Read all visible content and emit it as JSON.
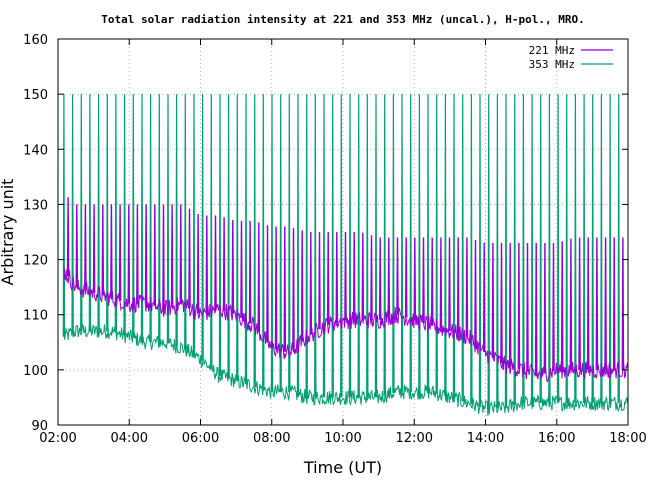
{
  "chart_data": {
    "type": "line",
    "title": "Total solar radiation intensity at 221 and 353 MHz (uncal.), H-pol., MRO.",
    "xlabel": "Time (UT)",
    "ylabel": "Arbitrary unit",
    "xlim": [
      "02:00",
      "18:00"
    ],
    "ylim": [
      90,
      160
    ],
    "x_ticks": [
      "02:00",
      "04:00",
      "06:00",
      "08:00",
      "10:00",
      "12:00",
      "14:00",
      "16:00",
      "18:00"
    ],
    "y_ticks": [
      90,
      100,
      110,
      120,
      130,
      140,
      150,
      160
    ],
    "grid": true,
    "legend_position": "top-right",
    "series": [
      {
        "name": "221 MHz",
        "color": "#9400d3",
        "x": [
          "02:10",
          "02:30",
          "03:00",
          "03:30",
          "04:00",
          "04:30",
          "05:00",
          "05:30",
          "06:00",
          "06:30",
          "07:00",
          "07:30",
          "08:00",
          "08:30",
          "09:00",
          "09:30",
          "10:00",
          "10:30",
          "11:00",
          "11:30",
          "12:00",
          "12:30",
          "13:00",
          "13:30",
          "14:00",
          "14:30",
          "15:00",
          "15:30",
          "16:00",
          "16:30",
          "17:00",
          "17:30",
          "18:00"
        ],
        "values": [
          118,
          115,
          114,
          113,
          112,
          112,
          111,
          112,
          110,
          111,
          110,
          108,
          104,
          103,
          106,
          108,
          109,
          109,
          109,
          110,
          109,
          108,
          107,
          106,
          103,
          101,
          100,
          99,
          100,
          100,
          100,
          100,
          100
        ],
        "spike_peaks": [
          132,
          130,
          130,
          130,
          130,
          130,
          130,
          130,
          128,
          128,
          127,
          127,
          126,
          126,
          125,
          125,
          125,
          125,
          124,
          124,
          124,
          124,
          124,
          124,
          123,
          123,
          123,
          123,
          123,
          124,
          124,
          124,
          124
        ]
      },
      {
        "name": "353 MHz",
        "color": "#009e73",
        "x": [
          "02:10",
          "02:30",
          "03:00",
          "03:30",
          "04:00",
          "04:30",
          "05:00",
          "05:30",
          "06:00",
          "06:30",
          "07:00",
          "07:30",
          "08:00",
          "08:30",
          "09:00",
          "09:30",
          "10:00",
          "10:30",
          "11:00",
          "11:30",
          "12:00",
          "12:30",
          "13:00",
          "13:30",
          "14:00",
          "14:30",
          "15:00",
          "15:30",
          "16:00",
          "16:30",
          "17:00",
          "17:30",
          "18:00"
        ],
        "values": [
          106,
          107,
          107,
          107,
          106,
          105,
          105,
          104,
          102,
          99,
          98,
          97,
          96,
          96,
          95,
          95,
          95,
          95,
          95,
          96,
          96,
          96,
          95,
          94,
          93,
          93,
          94,
          94,
          94,
          94,
          94,
          94,
          94
        ],
        "spike_peaks": [
          150,
          150,
          150,
          150,
          150,
          150,
          150,
          150,
          150,
          150,
          150,
          150,
          150,
          150,
          150,
          150,
          150,
          150,
          150,
          150,
          150,
          150,
          150,
          150,
          150,
          150,
          150,
          150,
          150,
          150,
          150,
          150,
          150
        ]
      }
    ]
  }
}
